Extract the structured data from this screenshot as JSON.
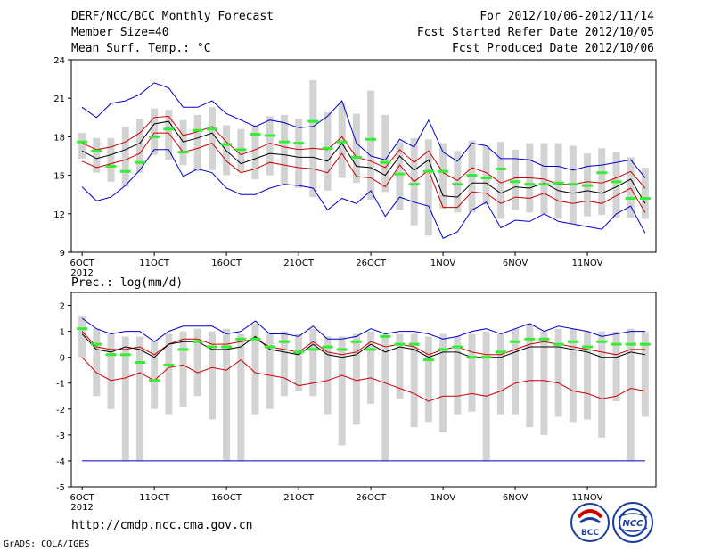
{
  "header": {
    "title": "DERF/NCC/BCC Monthly Forecast",
    "member_size": "Member Size=40",
    "variable": "Mean Surf. Temp.: °C",
    "period": "For 2012/10/06-2012/11/14",
    "started": "Fcst Started Refer Date 2012/10/05",
    "produced": "Fcst Produced Date 2012/10/06"
  },
  "footer": {
    "url": "http://cmdp.ncc.cma.gov.cn",
    "grads": "GrADS: COLA/IGES",
    "logo_bcc": "BCC",
    "logo_ncc": "NCC"
  },
  "colors": {
    "box": "#d3d3d3",
    "ensemble_mean": "#000000",
    "spread": "#cc0000",
    "extremes": "#0000cc",
    "climatology": "#33ee33"
  },
  "chart_data": [
    {
      "type": "line",
      "title": "Mean Surf. Temp.: °C",
      "x": [
        1,
        2,
        3,
        4,
        5,
        6,
        7,
        8,
        9,
        10,
        11,
        12,
        13,
        14,
        15,
        16,
        17,
        18,
        19,
        20,
        21,
        22,
        23,
        24,
        25,
        26,
        27,
        28,
        29,
        30,
        31,
        32,
        33,
        34,
        35,
        36,
        37,
        38,
        39,
        40
      ],
      "x_tick_labels": [
        "6OCT",
        "11OCT",
        "16OCT",
        "21OCT",
        "26OCT",
        "1NOV",
        "6NOV",
        "11NOV"
      ],
      "x_tick_positions": [
        1,
        6,
        11,
        16,
        21,
        26,
        31,
        36
      ],
      "x_sublabel": "2012",
      "ylim": [
        9,
        24
      ],
      "yticks": [
        9,
        12,
        15,
        18,
        21,
        24
      ],
      "series": [
        {
          "name": "max",
          "color": "#0000cc",
          "values": [
            20.3,
            19.5,
            20.6,
            20.8,
            21.3,
            22.2,
            21.8,
            20.3,
            20.3,
            20.8,
            19.8,
            19.3,
            18.8,
            19.3,
            19.1,
            18.7,
            18.8,
            19.6,
            20.8,
            17.5,
            16.5,
            16.2,
            17.8,
            17.2,
            19.3,
            16.8,
            16.1,
            17.5,
            17.3,
            16.3,
            16.3,
            16.2,
            15.7,
            15.7,
            15.4,
            15.7,
            15.8,
            16.0,
            16.2,
            14.8
          ]
        },
        {
          "name": "upper",
          "color": "#cc0000",
          "values": [
            17.5,
            17.0,
            17.2,
            17.6,
            18.3,
            19.5,
            19.6,
            18.1,
            18.4,
            18.8,
            17.6,
            16.6,
            17.0,
            17.5,
            17.2,
            17.0,
            17.1,
            17.0,
            18.0,
            16.4,
            16.1,
            15.6,
            17.0,
            16.0,
            16.9,
            15.2,
            14.6,
            15.6,
            15.2,
            14.4,
            14.8,
            14.8,
            14.7,
            14.3,
            14.3,
            14.5,
            14.4,
            14.8,
            15.3,
            14.0
          ]
        },
        {
          "name": "mean",
          "color": "#000000",
          "values": [
            16.9,
            16.3,
            16.6,
            17.0,
            17.5,
            19.0,
            19.2,
            17.6,
            17.9,
            18.3,
            16.9,
            15.9,
            16.3,
            16.7,
            16.6,
            16.4,
            16.4,
            16.1,
            17.5,
            15.7,
            15.6,
            15.0,
            16.5,
            15.4,
            16.2,
            13.4,
            13.3,
            14.4,
            14.4,
            13.6,
            14.1,
            14.0,
            14.4,
            13.8,
            13.6,
            13.8,
            13.6,
            14.1,
            14.7,
            12.8
          ]
        },
        {
          "name": "lower",
          "color": "#cc0000",
          "values": [
            16.1,
            15.6,
            15.9,
            16.2,
            16.7,
            18.3,
            18.3,
            16.8,
            17.1,
            17.5,
            16.1,
            15.2,
            15.5,
            16.0,
            15.8,
            15.6,
            15.5,
            15.2,
            16.7,
            14.9,
            14.8,
            14.1,
            15.8,
            14.5,
            15.4,
            12.5,
            12.5,
            13.7,
            13.6,
            12.8,
            13.3,
            13.2,
            13.6,
            13.0,
            12.8,
            13.0,
            12.8,
            13.4,
            14.0,
            12.1
          ]
        },
        {
          "name": "min",
          "color": "#0000cc",
          "values": [
            14.1,
            13.0,
            13.3,
            14.2,
            15.4,
            17.0,
            17.0,
            14.9,
            15.5,
            15.2,
            14.0,
            13.5,
            13.5,
            14.0,
            14.3,
            14.2,
            14.0,
            12.3,
            13.2,
            12.8,
            13.8,
            11.8,
            13.3,
            12.9,
            12.6,
            10.1,
            10.6,
            12.3,
            12.9,
            10.9,
            11.5,
            11.4,
            12.0,
            11.4,
            11.2,
            11.0,
            10.8,
            12.0,
            12.6,
            10.5
          ]
        },
        {
          "name": "climatology",
          "color": "#33ee33",
          "values": [
            17.6,
            16.9,
            15.7,
            15.3,
            16.0,
            18.0,
            18.6,
            16.8,
            18.5,
            18.6,
            17.4,
            17.0,
            18.2,
            18.1,
            17.6,
            17.5,
            19.2,
            17.1,
            17.6,
            16.4,
            17.8,
            16.0,
            15.1,
            14.3,
            15.3,
            15.3,
            14.3,
            15.0,
            14.8,
            15.5,
            14.5,
            14.3,
            14.3,
            14.4,
            14.3,
            14.2,
            15.2,
            14.5,
            13.2,
            13.2
          ]
        },
        {
          "name": "box_high",
          "color": "#d3d3d3",
          "values": [
            18.3,
            17.9,
            17.9,
            18.8,
            19.4,
            20.2,
            20.1,
            19.3,
            19.7,
            20.3,
            18.9,
            18.6,
            18.9,
            19.6,
            19.7,
            19.4,
            22.4,
            19.9,
            20.6,
            19.8,
            21.6,
            19.7,
            17.6,
            17.9,
            17.8,
            17.5,
            16.9,
            17.7,
            17.3,
            17.6,
            17.0,
            17.5,
            17.5,
            17.5,
            17.3,
            16.7,
            17.1,
            16.8,
            16.4,
            15.6
          ]
        },
        {
          "name": "box_low",
          "color": "#d3d3d3",
          "values": [
            16.3,
            15.2,
            14.5,
            14.1,
            15.2,
            16.6,
            16.2,
            15.8,
            15.3,
            15.4,
            15.0,
            15.3,
            14.7,
            15.0,
            14.2,
            14.0,
            13.3,
            13.8,
            14.8,
            14.4,
            13.1,
            13.7,
            12.3,
            11.1,
            10.3,
            12.4,
            12.1,
            12.1,
            12.7,
            11.6,
            12.3,
            12.1,
            12.0,
            11.6,
            11.2,
            11.8,
            11.9,
            11.7,
            11.7,
            11.6
          ]
        }
      ]
    },
    {
      "type": "line",
      "title": "Prec.: log(mm/d)",
      "x": [
        1,
        2,
        3,
        4,
        5,
        6,
        7,
        8,
        9,
        10,
        11,
        12,
        13,
        14,
        15,
        16,
        17,
        18,
        19,
        20,
        21,
        22,
        23,
        24,
        25,
        26,
        27,
        28,
        29,
        30,
        31,
        32,
        33,
        34,
        35,
        36,
        37,
        38,
        39,
        40
      ],
      "x_tick_labels": [
        "6OCT",
        "11OCT",
        "16OCT",
        "21OCT",
        "26OCT",
        "1NOV",
        "6NOV",
        "11NOV"
      ],
      "x_tick_positions": [
        1,
        6,
        11,
        16,
        21,
        26,
        31,
        36
      ],
      "x_sublabel": "2012",
      "ylim": [
        -5,
        2.5
      ],
      "yticks": [
        -5,
        -4,
        -3,
        -2,
        -1,
        0,
        1,
        2
      ],
      "series": [
        {
          "name": "max",
          "color": "#0000cc",
          "values": [
            1.5,
            1.1,
            0.9,
            1.0,
            1.0,
            0.6,
            1.0,
            1.2,
            1.2,
            1.2,
            0.9,
            1.0,
            1.4,
            0.9,
            0.9,
            0.8,
            1.2,
            0.7,
            0.7,
            0.8,
            1.1,
            0.9,
            1.0,
            1.0,
            0.9,
            0.7,
            0.8,
            1.0,
            1.1,
            0.9,
            1.1,
            1.3,
            1.0,
            1.2,
            1.1,
            1.0,
            0.8,
            0.9,
            1.0,
            1.0
          ]
        },
        {
          "name": "upper",
          "color": "#cc0000",
          "values": [
            1.0,
            0.4,
            0.3,
            0.3,
            0.4,
            0.1,
            0.5,
            0.7,
            0.7,
            0.5,
            0.5,
            0.6,
            0.7,
            0.4,
            0.3,
            0.2,
            0.6,
            0.2,
            0.1,
            0.2,
            0.6,
            0.4,
            0.5,
            0.4,
            0.1,
            0.3,
            0.4,
            0.2,
            0.1,
            0.1,
            0.3,
            0.5,
            0.6,
            0.5,
            0.4,
            0.3,
            0.2,
            0.1,
            0.3,
            0.3
          ]
        },
        {
          "name": "mean",
          "color": "#000000",
          "values": [
            0.9,
            0.3,
            0.2,
            0.4,
            0.3,
            0.0,
            0.5,
            0.6,
            0.6,
            0.3,
            0.3,
            0.4,
            0.8,
            0.3,
            0.2,
            0.1,
            0.5,
            0.1,
            0.0,
            0.1,
            0.5,
            0.2,
            0.4,
            0.3,
            0.0,
            0.2,
            0.2,
            0.0,
            0.0,
            0.0,
            0.2,
            0.4,
            0.4,
            0.4,
            0.3,
            0.2,
            0.0,
            0.0,
            0.2,
            0.1
          ]
        },
        {
          "name": "lower",
          "color": "#cc0000",
          "values": [
            0.0,
            -0.6,
            -0.9,
            -0.8,
            -0.6,
            -0.9,
            -0.4,
            -0.3,
            -0.6,
            -0.4,
            -0.5,
            -0.1,
            -0.6,
            -0.7,
            -0.8,
            -1.1,
            -1.0,
            -0.9,
            -0.7,
            -0.9,
            -0.8,
            -1.0,
            -1.2,
            -1.4,
            -1.7,
            -1.5,
            -1.5,
            -1.4,
            -1.5,
            -1.3,
            -1.0,
            -0.9,
            -0.9,
            -1.0,
            -1.3,
            -1.4,
            -1.6,
            -1.5,
            -1.2,
            -1.3
          ]
        },
        {
          "name": "min",
          "color": "#0000cc",
          "values": [
            -4,
            -4,
            -4,
            -4,
            -4,
            -4,
            -4,
            -4,
            -4,
            -4,
            -4,
            -4,
            -4,
            -4,
            -4,
            -4,
            -4,
            -4,
            -4,
            -4,
            -4,
            -4,
            -4,
            -4,
            -4,
            -4,
            -4,
            -4,
            -4,
            -4,
            -4,
            -4,
            -4,
            -4,
            -4,
            -4,
            -4,
            -4,
            -4,
            -4
          ]
        },
        {
          "name": "climatology",
          "color": "#33ee33",
          "values": [
            1.1,
            0.5,
            0.1,
            0.1,
            -0.2,
            -0.9,
            -0.3,
            0.3,
            0.6,
            0.4,
            0.4,
            0.7,
            0.7,
            0.4,
            0.6,
            0.2,
            0.3,
            0.4,
            0.3,
            0.6,
            0.3,
            0.8,
            0.5,
            0.5,
            -0.1,
            0.3,
            0.4,
            0.0,
            0.0,
            0.2,
            0.6,
            0.7,
            0.7,
            0.5,
            0.6,
            0.4,
            0.6,
            0.5,
            0.5,
            0.5
          ]
        },
        {
          "name": "box_high",
          "color": "#d3d3d3",
          "values": [
            1.6,
            1.1,
            0.9,
            0.8,
            0.8,
            0.6,
            0.9,
            1.0,
            1.1,
            1.0,
            1.1,
            0.9,
            1.3,
            0.9,
            1.0,
            0.9,
            1.1,
            0.8,
            0.8,
            0.9,
            1.0,
            0.9,
            0.9,
            0.9,
            0.8,
            0.9,
            0.8,
            0.9,
            1.0,
            0.9,
            1.1,
            1.3,
            1.0,
            1.1,
            1.1,
            1.0,
            1.0,
            1.0,
            1.1,
            1.0
          ]
        },
        {
          "name": "box_low",
          "color": "#d3d3d3",
          "values": [
            0.0,
            -1.5,
            -2.0,
            -4.0,
            -4.0,
            -2.0,
            -2.2,
            -1.9,
            -1.5,
            -2.4,
            -4.0,
            -4.0,
            -2.2,
            -2.0,
            -1.5,
            -1.3,
            -1.5,
            -2.2,
            -3.4,
            -2.6,
            -1.8,
            -4.0,
            -1.6,
            -2.7,
            -2.5,
            -2.9,
            -2.2,
            -2.1,
            -4.0,
            -2.2,
            -2.2,
            -2.7,
            -3.0,
            -2.3,
            -2.5,
            -2.4,
            -3.1,
            -1.7,
            -4.0,
            -2.3
          ]
        }
      ]
    }
  ]
}
